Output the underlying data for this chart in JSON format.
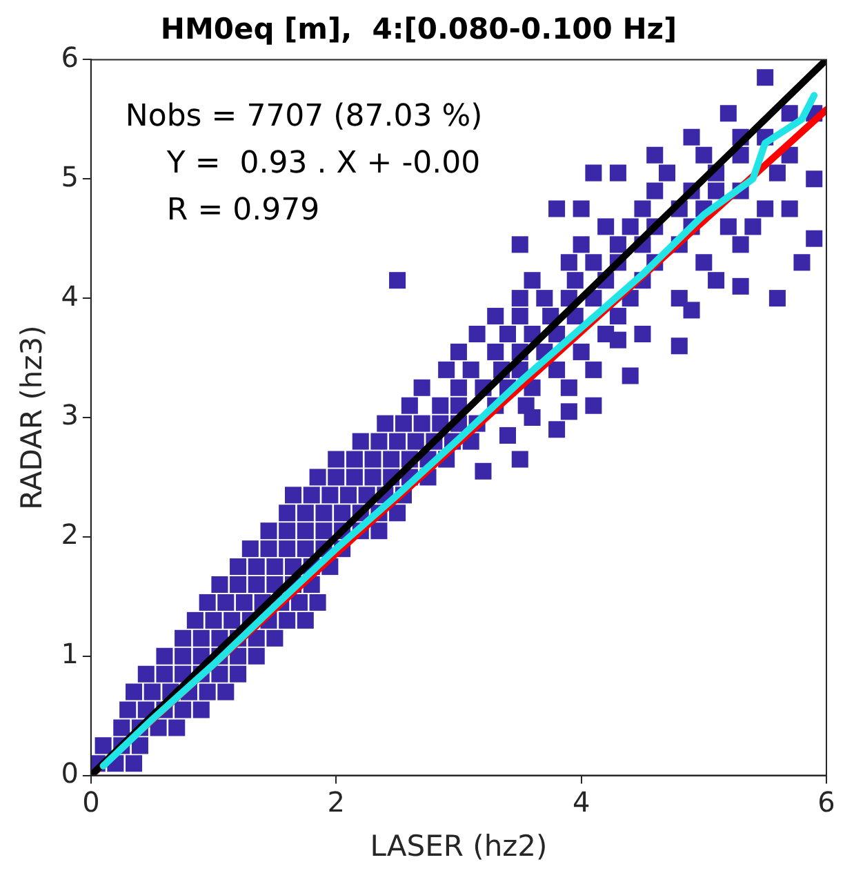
{
  "chart_data": {
    "type": "scatter",
    "title": "HM0eq [m],  4:[0.080-0.100 Hz]",
    "xlabel": "LASER (hz2)",
    "ylabel": "RADAR (hz3)",
    "xlim": [
      0,
      6
    ],
    "ylim": [
      0,
      6
    ],
    "xticks": [
      0,
      2,
      4,
      6
    ],
    "yticks": [
      0,
      1,
      2,
      3,
      4,
      5,
      6
    ],
    "grid": false,
    "legend": false,
    "annotations": [
      "Nobs = 7707 (87.03 %)",
      "Y =  0.93 . X + -0.00",
      "R = 0.979"
    ],
    "series": [
      {
        "marker": "square",
        "color": "#3b28a8",
        "x": [
          0.05,
          0.2,
          0.35,
          0.1,
          0.25,
          0.4,
          0.25,
          0.4,
          0.55,
          0.7,
          0.3,
          0.45,
          0.6,
          0.75,
          0.9,
          0.35,
          0.5,
          0.65,
          0.8,
          0.95,
          1.1,
          0.45,
          0.6,
          0.75,
          0.9,
          1.05,
          1.2,
          0.6,
          0.75,
          0.9,
          1.05,
          1.2,
          1.35,
          0.75,
          0.9,
          1.05,
          1.2,
          1.35,
          1.5,
          0.85,
          1.0,
          1.15,
          1.3,
          1.45,
          1.6,
          1.75,
          0.95,
          1.1,
          1.25,
          1.4,
          1.55,
          1.7,
          1.85,
          1.05,
          1.2,
          1.35,
          1.5,
          1.65,
          1.8,
          1.2,
          1.35,
          1.5,
          1.65,
          1.8,
          1.95,
          1.3,
          1.45,
          1.6,
          1.75,
          1.9,
          2.05,
          1.45,
          1.6,
          1.75,
          1.9,
          2.05,
          2.2,
          2.35,
          1.6,
          1.75,
          1.9,
          2.05,
          2.2,
          2.35,
          2.5,
          1.65,
          1.8,
          1.95,
          2.1,
          2.25,
          2.4,
          2.55,
          1.85,
          2.0,
          2.15,
          2.3,
          2.45,
          2.6,
          2.75,
          2.0,
          2.15,
          2.3,
          2.45,
          2.6,
          2.75,
          2.9,
          2.2,
          2.35,
          2.5,
          2.65,
          2.8,
          2.95,
          3.1,
          2.4,
          2.55,
          2.7,
          2.85,
          3.0,
          3.15,
          2.6,
          2.85,
          3.0,
          3.3,
          3.55,
          2.7,
          3.0,
          3.2,
          3.4,
          3.6,
          3.9,
          2.9,
          3.1,
          3.35,
          3.5,
          3.8,
          4.1,
          3.0,
          3.3,
          3.5,
          3.7,
          4.0,
          3.15,
          3.4,
          3.6,
          3.8,
          4.2,
          4.5,
          3.3,
          3.5,
          3.75,
          3.95,
          4.3,
          3.5,
          3.7,
          3.9,
          4.1,
          4.4,
          4.8,
          2.5,
          3.6,
          3.95,
          4.2,
          4.5,
          5.1,
          3.9,
          4.1,
          4.3,
          4.6,
          5.0,
          3.5,
          4.0,
          4.3,
          4.5,
          4.8,
          5.3,
          4.2,
          4.4,
          4.6,
          4.9,
          5.2,
          3.8,
          4.0,
          4.5,
          4.8,
          5.0,
          5.5,
          4.6,
          4.9,
          5.1,
          5.3,
          4.1,
          4.3,
          4.7,
          5.1,
          5.6,
          4.6,
          5.0,
          5.3,
          5.7,
          4.9,
          5.3,
          5.5,
          5.2,
          5.7,
          5.9,
          5.5,
          3.2,
          3.5,
          3.4,
          3.6,
          3.9,
          4.1,
          3.8,
          4.4,
          4.3,
          4.8,
          4.9,
          5.3,
          5.6,
          5.8,
          5.9,
          5.4,
          5.7,
          5.9
        ],
        "values": [
          0.1,
          0.1,
          0.1,
          0.25,
          0.25,
          0.25,
          0.4,
          0.4,
          0.4,
          0.4,
          0.55,
          0.55,
          0.55,
          0.55,
          0.55,
          0.7,
          0.7,
          0.7,
          0.7,
          0.7,
          0.7,
          0.85,
          0.85,
          0.85,
          0.85,
          0.85,
          0.85,
          1.0,
          1.0,
          1.0,
          1.0,
          1.0,
          1.0,
          1.15,
          1.15,
          1.15,
          1.15,
          1.15,
          1.15,
          1.3,
          1.3,
          1.3,
          1.3,
          1.3,
          1.3,
          1.3,
          1.45,
          1.45,
          1.45,
          1.45,
          1.45,
          1.45,
          1.45,
          1.6,
          1.6,
          1.6,
          1.6,
          1.6,
          1.6,
          1.75,
          1.75,
          1.75,
          1.75,
          1.75,
          1.75,
          1.9,
          1.9,
          1.9,
          1.9,
          1.9,
          1.9,
          2.05,
          2.05,
          2.05,
          2.05,
          2.05,
          2.05,
          2.05,
          2.2,
          2.2,
          2.2,
          2.2,
          2.2,
          2.2,
          2.2,
          2.35,
          2.35,
          2.35,
          2.35,
          2.35,
          2.35,
          2.35,
          2.5,
          2.5,
          2.5,
          2.5,
          2.5,
          2.5,
          2.5,
          2.65,
          2.65,
          2.65,
          2.65,
          2.65,
          2.65,
          2.65,
          2.8,
          2.8,
          2.8,
          2.8,
          2.8,
          2.8,
          2.8,
          2.95,
          2.95,
          2.95,
          2.95,
          2.95,
          2.95,
          3.1,
          3.1,
          3.1,
          3.1,
          3.1,
          3.25,
          3.25,
          3.25,
          3.25,
          3.25,
          3.25,
          3.4,
          3.4,
          3.4,
          3.4,
          3.4,
          3.4,
          3.55,
          3.55,
          3.55,
          3.55,
          3.55,
          3.7,
          3.7,
          3.7,
          3.7,
          3.7,
          3.7,
          3.85,
          3.85,
          3.85,
          3.85,
          3.85,
          4.0,
          4.0,
          4.0,
          4.0,
          4.0,
          4.0,
          4.15,
          4.15,
          4.15,
          4.15,
          4.15,
          4.15,
          4.3,
          4.3,
          4.3,
          4.3,
          4.3,
          4.45,
          4.45,
          4.45,
          4.45,
          4.45,
          4.45,
          4.6,
          4.6,
          4.6,
          4.6,
          4.6,
          4.75,
          4.75,
          4.75,
          4.75,
          4.75,
          4.75,
          4.9,
          4.9,
          4.9,
          4.9,
          5.05,
          5.05,
          5.05,
          5.05,
          5.05,
          5.2,
          5.2,
          5.2,
          5.2,
          5.35,
          5.35,
          5.35,
          5.55,
          5.55,
          5.55,
          5.85,
          2.55,
          2.65,
          2.85,
          3.0,
          3.05,
          3.1,
          2.9,
          3.35,
          3.65,
          3.6,
          3.9,
          4.1,
          4.0,
          4.3,
          4.5,
          4.6,
          4.75,
          5.0
        ]
      },
      {
        "type": "line",
        "marker": "none",
        "color": "#ff0000",
        "x": [
          0,
          6
        ],
        "values": [
          0,
          5.58
        ]
      },
      {
        "type": "line",
        "marker": "none",
        "color": "#000000",
        "x": [
          0,
          6
        ],
        "values": [
          0,
          6
        ]
      },
      {
        "type": "line",
        "marker": "none",
        "color": "#22e4e6",
        "x": [
          0.1,
          0.5,
          1,
          1.5,
          2,
          2.5,
          3,
          3.5,
          4,
          4.5,
          5,
          5.4,
          5.5,
          5.8,
          5.9
        ],
        "values": [
          0.08,
          0.47,
          0.93,
          1.42,
          1.9,
          2.35,
          2.82,
          3.3,
          3.75,
          4.2,
          4.7,
          5.0,
          5.3,
          5.5,
          5.7
        ]
      }
    ]
  }
}
